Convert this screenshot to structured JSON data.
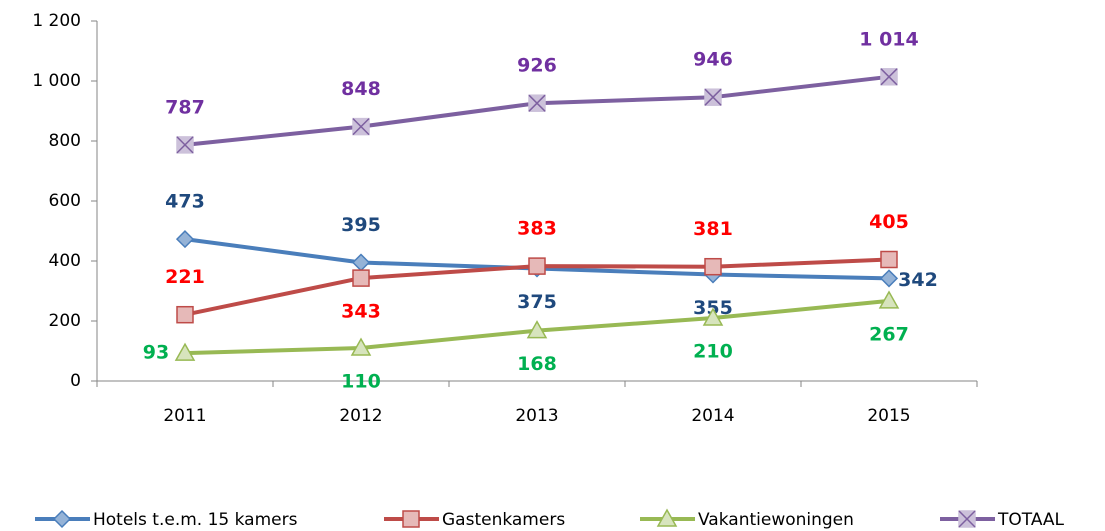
{
  "chart_data": {
    "type": "line",
    "categories": [
      "2011",
      "2012",
      "2013",
      "2014",
      "2015"
    ],
    "series": [
      {
        "name": "Hotels t.e.m. 15 kamers",
        "color": "#4a7ebb",
        "marker": "diamond",
        "marker_color": "#95b3d7",
        "label_color": "#1f497d",
        "values": [
          473,
          395,
          375,
          355,
          342
        ]
      },
      {
        "name": "Gastenkamers",
        "color": "#be4b48",
        "marker": "square",
        "marker_color": "#e6b9b8",
        "label_color": "#ff0000",
        "values": [
          221,
          343,
          383,
          381,
          405
        ]
      },
      {
        "name": "Vakantiewoningen",
        "color": "#98b954",
        "marker": "triangle",
        "marker_color": "#d7e4bd",
        "label_color": "#00b050",
        "values": [
          93,
          110,
          168,
          210,
          267
        ]
      },
      {
        "name": "TOTAAL",
        "color": "#7d60a0",
        "marker": "xsquare",
        "marker_color": "#ccc1da",
        "label_color": "#7030a0",
        "values": [
          787,
          848,
          926,
          946,
          1014
        ],
        "value_labels": [
          "787",
          "848",
          "926",
          "946",
          "1 014"
        ]
      }
    ],
    "ylim": [
      0,
      1200
    ],
    "yticks": [
      0,
      200,
      400,
      600,
      800,
      {
        "value": 1000,
        "label": "1 000"
      },
      {
        "value": 1200,
        "label": "1 200"
      }
    ],
    "grid": false,
    "legend": "bottom"
  }
}
